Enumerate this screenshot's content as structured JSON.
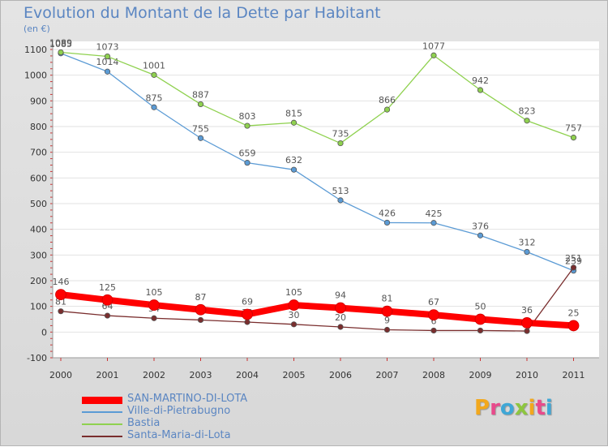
{
  "title": "Evolution du Montant de la Dette par Habitant",
  "unit_label": "(en €)",
  "brand": "Proxiti",
  "chart_data": {
    "type": "line",
    "x": [
      "2000",
      "2001",
      "2002",
      "2003",
      "2004",
      "2005",
      "2006",
      "2007",
      "2008",
      "2009",
      "2010",
      "2011"
    ],
    "ylim": [
      -100,
      1100
    ],
    "yticks": [
      -100,
      0,
      100,
      200,
      300,
      400,
      500,
      600,
      700,
      800,
      900,
      1000,
      1100
    ],
    "grid": "horizontal",
    "legend": "bottom-left",
    "series": [
      {
        "name": "SAN-MARTINO-DI-LOTA",
        "color": "#ff0000",
        "values": [
          146,
          125,
          105,
          87,
          69,
          105,
          94,
          81,
          67,
          50,
          36,
          25
        ],
        "width": "thick"
      },
      {
        "name": "Ville-di-Pietrabugno",
        "color": "#5b9bd5",
        "values": [
          1085,
          1014,
          875,
          755,
          659,
          632,
          513,
          426,
          425,
          376,
          312,
          239
        ],
        "width": "thin"
      },
      {
        "name": "Bastia",
        "color": "#8fd14f",
        "values": [
          1089,
          1073,
          1001,
          887,
          803,
          815,
          735,
          866,
          1077,
          942,
          823,
          757
        ],
        "width": "thin"
      },
      {
        "name": "Santa-Maria-di-Lota",
        "color": "#7a2e2e",
        "values": [
          81,
          64,
          54,
          47,
          39,
          30,
          20,
          9,
          6,
          6,
          4,
          251
        ],
        "width": "thin"
      }
    ]
  }
}
